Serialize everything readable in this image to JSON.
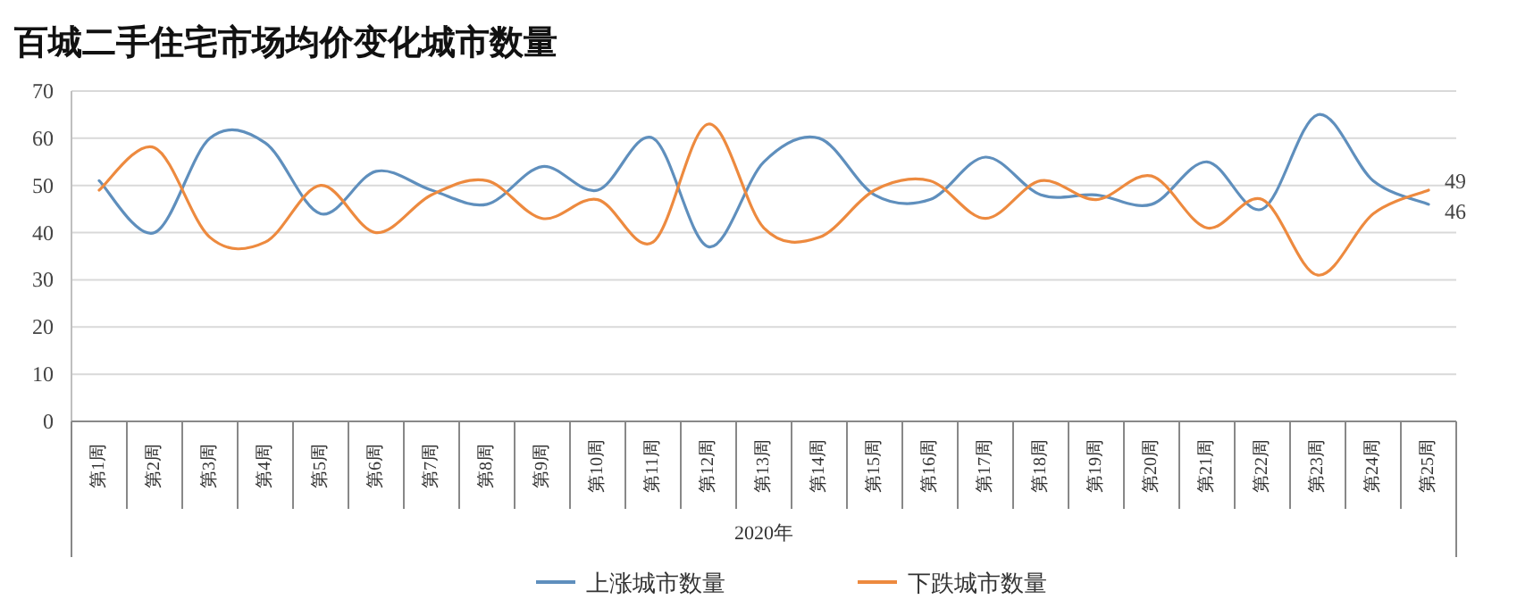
{
  "chart_data": {
    "type": "line",
    "title": "百城二手住宅市场均价变化城市数量",
    "xlabel": "2020年",
    "categories": [
      "第1周",
      "第2周",
      "第3周",
      "第4周",
      "第5周",
      "第6周",
      "第7周",
      "第8周",
      "第9周",
      "第10周",
      "第11周",
      "第12周",
      "第13周",
      "第14周",
      "第15周",
      "第16周",
      "第17周",
      "第18周",
      "第19周",
      "第20周",
      "第21周",
      "第22周",
      "第23周",
      "第24周",
      "第25周"
    ],
    "series": [
      {
        "name": "上涨城市数量",
        "color": "#5f8fbd",
        "values": [
          51,
          40,
          60,
          59,
          44,
          53,
          49,
          46,
          54,
          49,
          60,
          37,
          55,
          60,
          48,
          47,
          56,
          48,
          48,
          46,
          55,
          45,
          65,
          51,
          46
        ],
        "value_labels": [
          null,
          null,
          null,
          null,
          null,
          null,
          null,
          null,
          null,
          null,
          null,
          null,
          null,
          null,
          null,
          null,
          null,
          null,
          null,
          null,
          null,
          null,
          null,
          null,
          "46"
        ]
      },
      {
        "name": "下跌城市数量",
        "color": "#ed8a3f",
        "values": [
          49,
          58,
          39,
          38,
          50,
          40,
          48,
          51,
          43,
          47,
          38,
          63,
          41,
          39,
          49,
          51,
          43,
          51,
          47,
          52,
          41,
          47,
          31,
          44,
          49
        ],
        "value_labels": [
          null,
          null,
          null,
          null,
          null,
          null,
          null,
          null,
          null,
          null,
          null,
          null,
          null,
          null,
          null,
          null,
          null,
          null,
          null,
          null,
          null,
          null,
          null,
          null,
          "49"
        ]
      }
    ],
    "ylim": [
      0,
      70
    ],
    "yticks": [
      0,
      10,
      20,
      30,
      40,
      50,
      60,
      70
    ],
    "grid": "y",
    "legend": "bottom"
  }
}
